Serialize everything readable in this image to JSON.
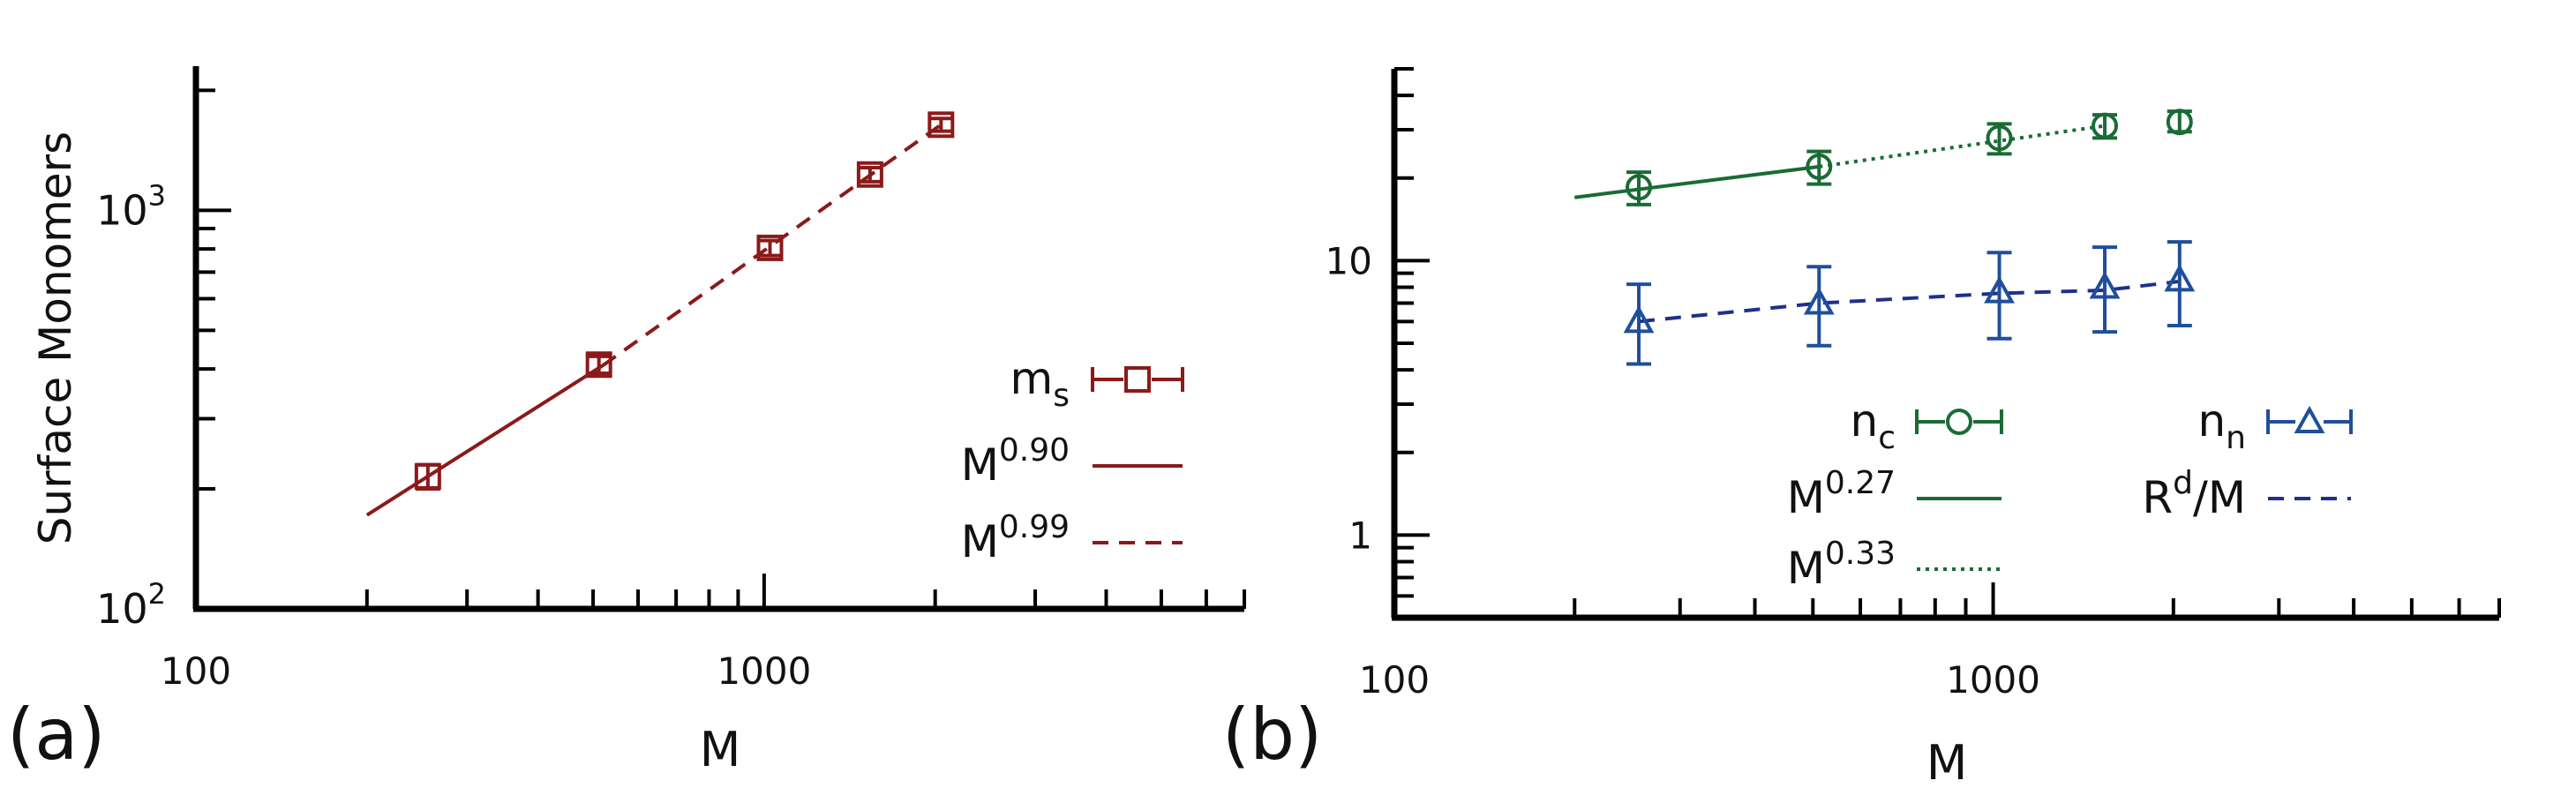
{
  "chart_data": [
    {
      "type": "line",
      "panel_label": "(a)",
      "xlabel": "M",
      "ylabel": "Surface Monomers",
      "xscale": "log",
      "yscale": "log",
      "xlim": [
        100,
        7000
      ],
      "ylim": [
        100,
        2300
      ],
      "xticks": [
        100,
        1000
      ],
      "xtick_labels": [
        "100",
        "1000"
      ],
      "yticks": [
        100,
        1000
      ],
      "ytick_labels": [
        {
          "base": "10",
          "exp": "2"
        },
        {
          "base": "10",
          "exp": "3"
        }
      ],
      "color": "#8b1a1a",
      "series": [
        {
          "name": "m_s",
          "legend_base": "m",
          "legend_sub": "s",
          "kind": "points",
          "marker": "square",
          "x": [
            256,
            512,
            1024,
            1536,
            2048
          ],
          "y": [
            215,
            410,
            805,
            1230,
            1640
          ],
          "yerr": [
            [
              200,
              230
            ],
            [
              390,
              430
            ],
            [
              770,
              840
            ],
            [
              1180,
              1280
            ],
            [
              1580,
              1700
            ]
          ]
        },
        {
          "name": "M^0.90",
          "legend_base": "M",
          "legend_sup": "0.90",
          "kind": "line",
          "dash": "solid",
          "x": [
            200,
            520
          ],
          "y": [
            172,
            408
          ]
        },
        {
          "name": "M^0.99",
          "legend_base": "M",
          "legend_sup": "0.99",
          "kind": "line",
          "dash": "dashed",
          "x": [
            520,
            2048
          ],
          "y": [
            408,
            1640
          ]
        }
      ]
    },
    {
      "type": "line",
      "panel_label": "(b)",
      "xlabel": "M",
      "ylabel": "",
      "xscale": "log",
      "yscale": "log",
      "xlim": [
        100,
        7000
      ],
      "ylim": [
        0.5,
        50
      ],
      "xticks": [
        100,
        1000
      ],
      "xtick_labels": [
        "100",
        "1000"
      ],
      "yticks": [
        1,
        10
      ],
      "ytick_labels": [
        "1",
        "10"
      ],
      "series": [
        {
          "name": "n_c",
          "legend_base": "n",
          "legend_sub": "c",
          "kind": "points",
          "marker": "circle",
          "color": "#1a6b35",
          "x": [
            256,
            512,
            1024,
            1536,
            2048
          ],
          "y": [
            18.5,
            22,
            28,
            31,
            32
          ],
          "yerr": [
            [
              16,
              21
            ],
            [
              19,
              25
            ],
            [
              24.5,
              31.5
            ],
            [
              28,
              34
            ],
            [
              29.5,
              35
            ]
          ]
        },
        {
          "name": "n_n",
          "legend_base": "n",
          "legend_sub": "n",
          "kind": "points",
          "marker": "triangle",
          "color": "#1f4e9c",
          "x": [
            256,
            512,
            1024,
            1536,
            2048
          ],
          "y": [
            6.0,
            7.0,
            7.7,
            8.0,
            8.5
          ],
          "yerr": [
            [
              4.2,
              8.2
            ],
            [
              4.9,
              9.5
            ],
            [
              5.2,
              10.7
            ],
            [
              5.5,
              11.2
            ],
            [
              5.8,
              11.7
            ]
          ]
        },
        {
          "name": "M^0.27",
          "legend_base": "M",
          "legend_sup": "0.27",
          "kind": "line",
          "dash": "solid",
          "color": "#1a6b35",
          "x": [
            200,
            512
          ],
          "y": [
            17.0,
            22.0
          ]
        },
        {
          "name": "M^0.33",
          "legend_base": "M",
          "legend_sup": "0.33",
          "kind": "line",
          "dash": "dotted",
          "color": "#1a6b35",
          "x": [
            512,
            1536
          ],
          "y": [
            22.0,
            31.0
          ]
        },
        {
          "name": "R^d/M",
          "legend_base": "R",
          "legend_sup": "d",
          "legend_tail": "/M",
          "kind": "line",
          "dash": "dashed",
          "color": "#1f2f8a",
          "x": [
            256,
            512,
            1024,
            1536,
            2048
          ],
          "y": [
            6.0,
            7.0,
            7.6,
            7.8,
            8.4
          ]
        }
      ]
    }
  ]
}
